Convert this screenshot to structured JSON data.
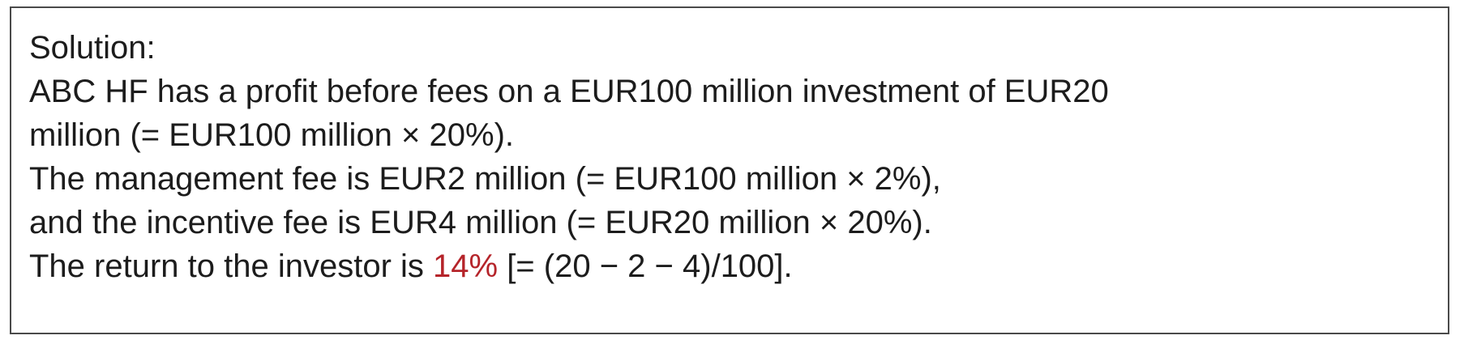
{
  "solution": {
    "heading": "Solution:",
    "line1": "ABC HF has a profit before fees on a EUR100 million investment of EUR20",
    "line2": "million (= EUR100 million × 20%).",
    "line3": "The management fee is EUR2 million (= EUR100 million × 2%),",
    "line4": "and the incentive fee is EUR4 million (= EUR20 million × 20%).",
    "line5_prefix": "The return to the investor is ",
    "line5_highlight": "14%",
    "line5_suffix": " [= (20 − 2 − 4)/100].",
    "highlight_color": "#b5242a"
  }
}
